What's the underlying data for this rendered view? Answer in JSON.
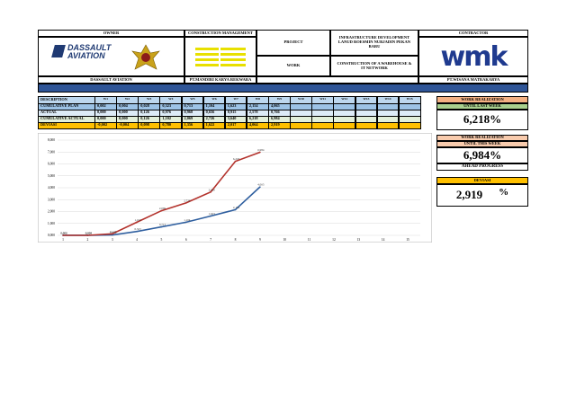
{
  "header": {
    "owner_label": "OWNER",
    "cm_label": "CONSTRUCTION MANAGEMENT",
    "project_label": "PROJECT",
    "project": "INFRASTRUCTURE DEVELOPMENT LANUD ROESMIN NURJADIN PEKAN BARU",
    "contractor_label": "CONTRACTOR",
    "work_label": "WORK",
    "work": "CONSTRUCTION OF A WAREHOUSE & IT NETWORK",
    "owner_logo": "DASSAULT AVIATION",
    "contractor_logo": "wmk",
    "owner": "DASSAULT AVIATION",
    "cm": "PT.MANDIRI KARYA REKWARA",
    "contractor": "PT.WISANA MATRAKARYA"
  },
  "table": {
    "columns": [
      "DESCRIPTION",
      "W1",
      "W2",
      "W3",
      "W4",
      "W5",
      "W6",
      "W7",
      "W8",
      "W9",
      "W10",
      "W11",
      "W12",
      "W13",
      "W14",
      "W15"
    ],
    "rows": [
      [
        "CUMULATIVE PLAN",
        "0,002",
        "0,004",
        "0,028",
        "0,323",
        "0,713",
        "1,104",
        "1,623",
        "2,154",
        "4,065"
      ],
      [
        "ACTUAL",
        "0,000",
        "0,000",
        "0,126",
        "0,976",
        "0,968",
        "0,656",
        "0,915",
        "2,578",
        "0,766"
      ],
      [
        "CUMULATIVE ACTUAL",
        "0,000",
        "0,000",
        "0,126",
        "1,102",
        "2,069",
        "2,726",
        "3,640",
        "6,218",
        "6,984"
      ],
      [
        "DEVIASI",
        "-0,002",
        "-0,004",
        "0,098",
        "0,780",
        "1,356",
        "1,622",
        "2,017",
        "4,064",
        "2,919"
      ]
    ]
  },
  "summary": {
    "last_title": "WORK REALIZATION",
    "last_sub": "UNTIL LAST WEEK",
    "last_value": "6,218%",
    "this_title": "WORK REALIZATION",
    "this_sub": "UNTIL THIS WEEK",
    "this_value": "6,984%",
    "status": "AHEAD PROGRESS",
    "dev_title": "DEVIASI",
    "dev_value": "2,919",
    "dev_unit": "%"
  },
  "chart_data": {
    "type": "line",
    "categories": [
      "1",
      "2",
      "3",
      "4",
      "5",
      "6",
      "7",
      "8",
      "9",
      "10",
      "11",
      "12",
      "13",
      "14",
      "15"
    ],
    "ylim": [
      0,
      8
    ],
    "yticks": [
      {
        "value": 0,
        "label": "0,000"
      },
      {
        "value": 1,
        "label": "1,000"
      },
      {
        "value": 2,
        "label": "2,000"
      },
      {
        "value": 3,
        "label": "3,000"
      },
      {
        "value": 4,
        "label": "4,000"
      },
      {
        "value": 5,
        "label": "5,000"
      },
      {
        "value": 6,
        "label": "6,000"
      },
      {
        "value": 7,
        "label": "7,000"
      },
      {
        "value": 8,
        "label": "8,000"
      }
    ],
    "grid": true,
    "series": [
      {
        "color": "#2f5f9f",
        "values": [
          0.002,
          0.004,
          0.028,
          0.323,
          0.713,
          1.104,
          1.623,
          2.154,
          4.065,
          null,
          null,
          null,
          null,
          null,
          null
        ],
        "value_labels": [
          "0,002",
          "0,004",
          "0,028",
          "0,323",
          "0,713",
          "1,104",
          "1,623",
          "2,154",
          "4,065",
          null,
          null,
          null,
          null,
          null,
          null
        ]
      },
      {
        "color": "#b3322c",
        "values": [
          0,
          0,
          0.126,
          1.102,
          2.069,
          2.726,
          3.64,
          6.218,
          6.984,
          null,
          null,
          null,
          null,
          null,
          null
        ],
        "value_labels": [
          "0,000",
          "0,000",
          "0,126",
          "1,102",
          "2,069",
          "2,726",
          "3,640",
          "6,218",
          "6,984",
          null,
          null,
          null,
          null,
          null,
          null
        ]
      }
    ]
  }
}
